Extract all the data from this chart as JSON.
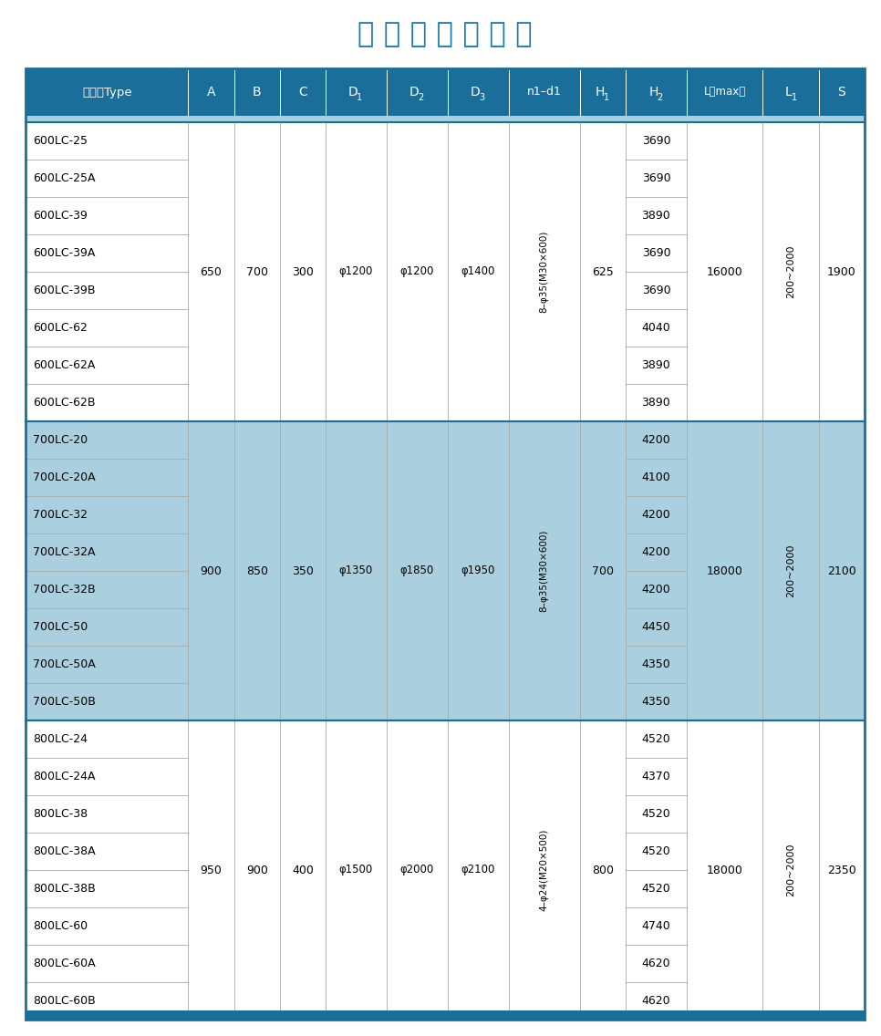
{
  "title": "外 形 安 装 尺 寸 表",
  "title_color": "#1a7aaa",
  "header_bg": "#1a6f9a",
  "subheader_bg": "#aacfdf",
  "group_bgs": [
    "white",
    "#aacfdf",
    "white"
  ],
  "line_color": "#aaaaaa",
  "border_color": "#1a6f9a",
  "col_headers": [
    "泵型号Type",
    "A",
    "B",
    "C",
    "D1",
    "D2",
    "D3",
    "n1-d1",
    "H1",
    "H2",
    "L ( max )",
    "L1",
    "S"
  ],
  "col_subs": [
    null,
    null,
    null,
    null,
    "1",
    "2",
    "3",
    null,
    "1",
    "2",
    null,
    "1",
    null
  ],
  "col_widths_rel": [
    3.2,
    0.9,
    0.9,
    0.9,
    1.2,
    1.2,
    1.2,
    1.4,
    0.9,
    1.2,
    1.5,
    1.1,
    0.9
  ],
  "groups": [
    {
      "rows": [
        {
          "type": "600LC-25",
          "H2": "3690"
        },
        {
          "type": "600LC-25A",
          "H2": "3690"
        },
        {
          "type": "600LC-39",
          "H2": "3890"
        },
        {
          "type": "600LC-39A",
          "H2": "3690"
        },
        {
          "type": "600LC-39B",
          "H2": "3690"
        },
        {
          "type": "600LC-62",
          "H2": "4040"
        },
        {
          "type": "600LC-62A",
          "H2": "3890"
        },
        {
          "type": "600LC-62B",
          "H2": "3890"
        }
      ],
      "A": "650",
      "B": "700",
      "C": "300",
      "D1": "φ1200",
      "D2": "φ1200",
      "D3": "φ1400",
      "n1d1": "8–φ35(M30×600)",
      "H1": "625",
      "L_max": "16000",
      "L1": "200~2000",
      "S": "1900"
    },
    {
      "rows": [
        {
          "type": "700LC-20",
          "H2": "4200"
        },
        {
          "type": "700LC-20A",
          "H2": "4100"
        },
        {
          "type": "700LC-32",
          "H2": "4200"
        },
        {
          "type": "700LC-32A",
          "H2": "4200"
        },
        {
          "type": "700LC-32B",
          "H2": "4200"
        },
        {
          "type": "700LC-50",
          "H2": "4450"
        },
        {
          "type": "700LC-50A",
          "H2": "4350"
        },
        {
          "type": "700LC-50B",
          "H2": "4350"
        }
      ],
      "A": "900",
      "B": "850",
      "C": "350",
      "D1": "φ1350",
      "D2": "φ1850",
      "D3": "φ1950",
      "n1d1": "8–φ35(M30×600)",
      "H1": "700",
      "L_max": "18000",
      "L1": "200~2000",
      "S": "2100"
    },
    {
      "rows": [
        {
          "type": "800LC-24",
          "H2": "4520"
        },
        {
          "type": "800LC-24A",
          "H2": "4370"
        },
        {
          "type": "800LC-38",
          "H2": "4520"
        },
        {
          "type": "800LC-38A",
          "H2": "4520"
        },
        {
          "type": "800LC-38B",
          "H2": "4520"
        },
        {
          "type": "800LC-60",
          "H2": "4740"
        },
        {
          "type": "800LC-60A",
          "H2": "4620"
        },
        {
          "type": "800LC-60B",
          "H2": "4620"
        }
      ],
      "A": "950",
      "B": "900",
      "C": "400",
      "D1": "φ1500",
      "D2": "φ2000",
      "D3": "φ2100",
      "n1d1": "4–φ24(M20×500)",
      "H1": "800",
      "L_max": "18000",
      "L1": "200~2000",
      "S": "2350"
    }
  ]
}
